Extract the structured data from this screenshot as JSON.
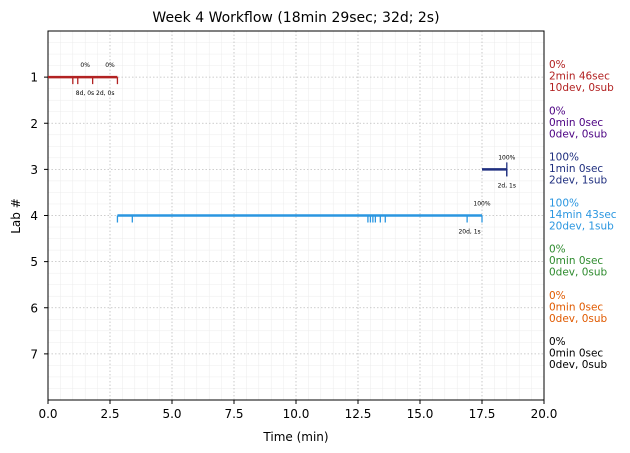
{
  "chart_data": {
    "type": "timeline",
    "title": "Week 4 Workflow (18min 29sec; 32d; 2s)",
    "xlabel": "Time (min)",
    "ylabel": "Lab #",
    "xlim": [
      0,
      20
    ],
    "ylim": [
      8,
      0
    ],
    "x_ticks": [
      "0.0",
      "2.5",
      "5.0",
      "7.5",
      "10.0",
      "12.5",
      "15.0",
      "17.5",
      "20.0"
    ],
    "y_ticks": [
      "1",
      "2",
      "3",
      "4",
      "5",
      "6",
      "7"
    ],
    "grid": true,
    "labs": [
      {
        "lab": 1,
        "color": "#b22222",
        "start": 0.0,
        "end": 2.8,
        "ticks": [
          1.0,
          1.2,
          1.8,
          2.8
        ],
        "markers": [
          {
            "x": 1.5,
            "label": "0%"
          },
          {
            "x": 2.5,
            "label": "0%"
          }
        ],
        "below_label": "8d, 0s 2d, 0s",
        "below_x": 1.9,
        "right_lines": [
          "0%",
          "2min 46sec",
          "10dev, 0sub"
        ]
      },
      {
        "lab": 2,
        "color": "#4b0082",
        "start": null,
        "end": null,
        "ticks": [],
        "markers": [],
        "below_label": "",
        "below_x": null,
        "right_lines": [
          "0%",
          "0min 0sec",
          "0dev, 0sub"
        ]
      },
      {
        "lab": 3,
        "color": "#1f2f7f",
        "start": 17.5,
        "end": 18.5,
        "ticks": [
          18.5
        ],
        "markers": [
          {
            "x": 18.5,
            "label": "100%"
          }
        ],
        "below_label": "2d, 1s",
        "below_x": 18.5,
        "right_lines": [
          "100%",
          "1min 0sec",
          "2dev, 1sub"
        ]
      },
      {
        "lab": 4,
        "color": "#2a96e0",
        "start": 2.8,
        "end": 17.5,
        "ticks": [
          2.8,
          3.4,
          12.9,
          13.0,
          13.1,
          13.2,
          13.4,
          13.6,
          16.9,
          17.5
        ],
        "markers": [
          {
            "x": 17.5,
            "label": "100%"
          }
        ],
        "below_label": "20d, 1s",
        "below_x": 17.0,
        "right_lines": [
          "100%",
          "14min 43sec",
          "20dev, 1sub"
        ]
      },
      {
        "lab": 5,
        "color": "#2e8b2e",
        "start": null,
        "end": null,
        "ticks": [],
        "markers": [],
        "below_label": "",
        "below_x": null,
        "right_lines": [
          "0%",
          "0min 0sec",
          "0dev, 0sub"
        ]
      },
      {
        "lab": 6,
        "color": "#e05a00",
        "start": null,
        "end": null,
        "ticks": [],
        "markers": [],
        "below_label": "",
        "below_x": null,
        "right_lines": [
          "0%",
          "0min 0sec",
          "0dev, 0sub"
        ]
      },
      {
        "lab": 7,
        "color": "#000000",
        "start": null,
        "end": null,
        "ticks": [],
        "markers": [],
        "below_label": "",
        "below_x": null,
        "right_lines": [
          "0%",
          "0min 0sec",
          "0dev, 0sub"
        ]
      }
    ]
  }
}
